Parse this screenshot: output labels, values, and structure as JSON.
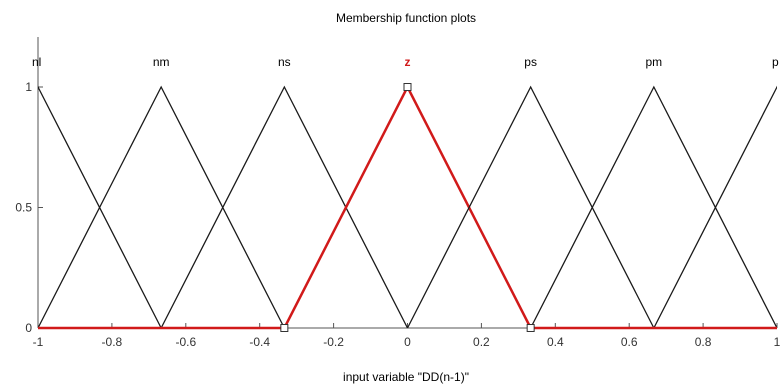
{
  "chart_data": {
    "type": "line",
    "title": "Membership function plots",
    "xlabel": "input variable \"DD(n-1)\"",
    "ylabel": "",
    "xlim": [
      -1,
      1
    ],
    "ylim": [
      0,
      1
    ],
    "x_ticks": [
      "-1",
      "-0.8",
      "-0.6",
      "-0.4",
      "-0.2",
      "0",
      "0.2",
      "0.4",
      "0.6",
      "0.8",
      "1"
    ],
    "y_ticks": [
      "0",
      "0.5",
      "1"
    ],
    "grid": false,
    "selected": "z",
    "colors": {
      "normal": "#1a1a1a",
      "selected": "#d11a1a",
      "axis": "#555555"
    },
    "series": [
      {
        "name": "nl",
        "params": [
          -1.3333,
          -1,
          -0.6667
        ],
        "label_x": -1
      },
      {
        "name": "nm",
        "params": [
          -1,
          -0.6667,
          -0.3333
        ],
        "label_x": -0.6667
      },
      {
        "name": "ns",
        "params": [
          -0.6667,
          -0.3333,
          0
        ],
        "label_x": -0.3333
      },
      {
        "name": "z",
        "params": [
          -0.3333,
          0,
          0.3333
        ],
        "label_x": 0
      },
      {
        "name": "ps",
        "params": [
          0,
          0.3333,
          0.6667
        ],
        "label_x": 0.3333
      },
      {
        "name": "pm",
        "params": [
          0.3333,
          0.6667,
          1
        ],
        "label_x": 0.6667
      },
      {
        "name": "p",
        "params": [
          0.6667,
          1,
          1.3333
        ],
        "label_x": 1
      }
    ]
  }
}
